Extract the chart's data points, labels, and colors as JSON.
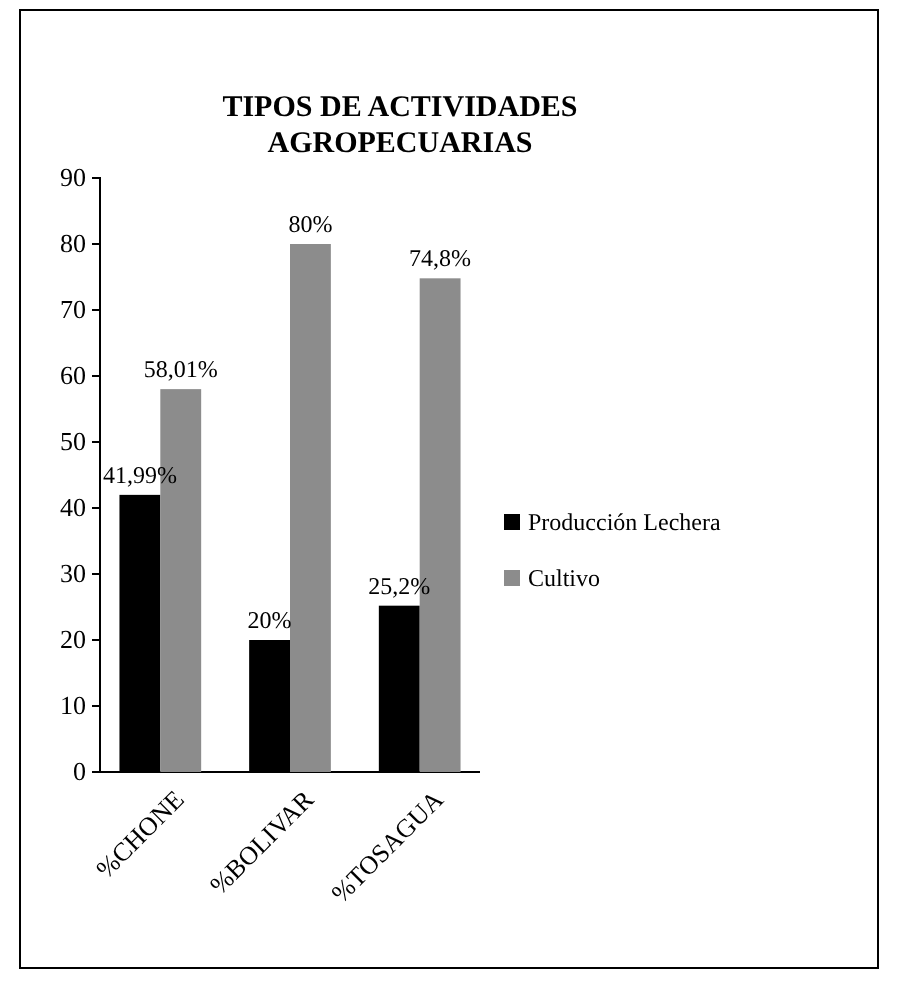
{
  "chart_data": {
    "type": "bar",
    "title": "TIPOS DE ACTIVIDADES AGROPECUARIAS",
    "categories": [
      "%CHONE",
      "%BOLIVAR",
      "%TOSAGUA"
    ],
    "series": [
      {
        "name": "Producción Lechera",
        "color": "#000000",
        "values": [
          41.99,
          20,
          25.2
        ],
        "value_labels": [
          "41,99%",
          "20%",
          "25,2%"
        ]
      },
      {
        "name": "Cultivo",
        "color": "#8c8c8c",
        "values": [
          58.01,
          80,
          74.8
        ],
        "value_labels": [
          "58,01%",
          "80%",
          "74,8%"
        ]
      }
    ],
    "ylim": [
      0,
      90
    ],
    "yticks": [
      0,
      10,
      20,
      30,
      40,
      50,
      60,
      70,
      80,
      90
    ],
    "grid": false,
    "legend": "right"
  }
}
